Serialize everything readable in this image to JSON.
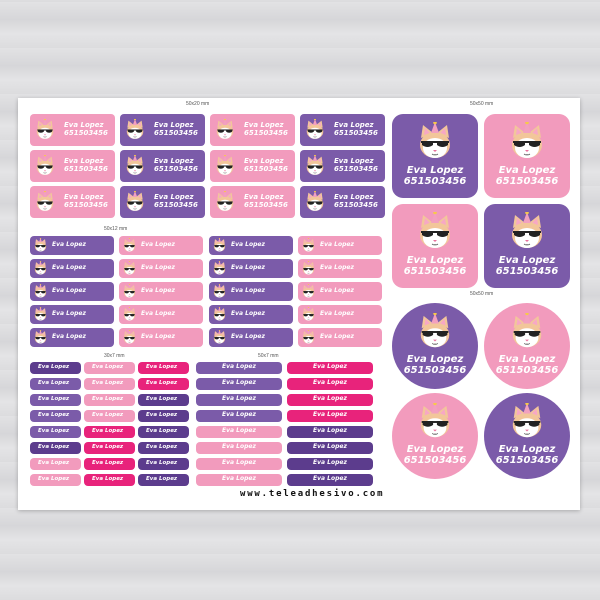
{
  "label": {
    "name": "Eva Lopez",
    "phone": "651503456",
    "icon": "cat-with-party-hat-and-sunglasses-icon"
  },
  "dimensions": {
    "block_50x20": "50x20 mm",
    "block_50x50_square": "50x50 mm",
    "block_50x12": "50x12 mm",
    "block_50x50_round": "50x50 mm",
    "block_30x7": "30x7 mm",
    "block_50x7": "50x7 mm"
  },
  "website": "www.teleadhesivo.com",
  "colors": {
    "pink": "#f29bbd",
    "purple": "#7b5ba9",
    "magenta": "#e8237b",
    "dark_purple": "#5c3c8d",
    "cat_fur": "#f2c69a",
    "cat_face": "#ffffff"
  }
}
